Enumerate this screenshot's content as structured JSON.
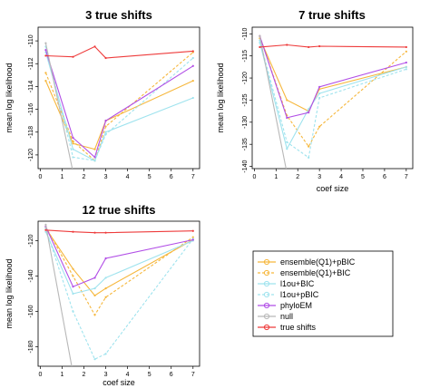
{
  "chart_data": [
    {
      "type": "line",
      "title": "3  true shifts",
      "xlabel": "",
      "ylabel": "mean log likelihood",
      "x": [
        0.25,
        1.5,
        2.5,
        3,
        7
      ],
      "xticks": [
        0,
        1,
        2,
        3,
        4,
        5,
        6,
        7
      ],
      "xlim": [
        -0.1,
        7.3
      ],
      "ylim": [
        -121.2,
        -108.8
      ],
      "yticks": [
        -110,
        -112,
        -114,
        -116,
        -118,
        -120
      ],
      "series": [
        {
          "key": "ens_pbic",
          "values": [
            -113.5,
            -119,
            -119.5,
            -117,
            -113.5
          ]
        },
        {
          "key": "ens_bic",
          "values": [
            -112.8,
            -118.8,
            -120.5,
            -117.5,
            -111.0
          ]
        },
        {
          "key": "l1ou_bic",
          "values": [
            -111.0,
            -119.5,
            -120.5,
            -118.0,
            -115.0
          ]
        },
        {
          "key": "l1ou_pbic",
          "values": [
            -110.5,
            -120.2,
            -120.5,
            -118.2,
            -111.5
          ]
        },
        {
          "key": "phyloem",
          "values": [
            -110.8,
            -118.5,
            -120.2,
            -117.0,
            -112.2
          ]
        },
        {
          "key": "null",
          "values": [
            -110.2,
            -121.5,
            null,
            null,
            null
          ]
        },
        {
          "key": "true",
          "values": [
            -111.3,
            -111.4,
            -110.5,
            -111.5,
            -110.9
          ]
        }
      ]
    },
    {
      "type": "line",
      "title": "7  true shifts",
      "xlabel": "coef size",
      "ylabel": "mean log likelihood",
      "x": [
        0.25,
        1.5,
        2.5,
        3,
        7
      ],
      "xticks": [
        0,
        1,
        2,
        3,
        4,
        5,
        6,
        7
      ],
      "xlim": [
        -0.1,
        7.3
      ],
      "ylim": [
        -140.5,
        -108.5
      ],
      "yticks": [
        -110,
        -115,
        -120,
        -125,
        -130,
        -135,
        -140
      ],
      "series": [
        {
          "key": "ens_pbic",
          "values": [
            -111.0,
            -125.0,
            -127.5,
            -122.5,
            -117.5
          ]
        },
        {
          "key": "ens_bic",
          "values": [
            -110.5,
            -128.5,
            -135.5,
            -131.0,
            -114.0
          ]
        },
        {
          "key": "l1ou_bic",
          "values": [
            -112.0,
            -136.0,
            -127.0,
            -123.5,
            -117.5
          ]
        },
        {
          "key": "l1ou_pbic",
          "values": [
            -111.5,
            -134.5,
            -138.0,
            -124.5,
            -118.0
          ]
        },
        {
          "key": "phyloem",
          "values": [
            -110.5,
            -129.0,
            -127.8,
            -122.0,
            -116.5
          ]
        },
        {
          "key": "null",
          "values": [
            -110.5,
            -141.5,
            null,
            null,
            null
          ]
        },
        {
          "key": "true",
          "values": [
            -113.0,
            -112.5,
            -113.0,
            -112.8,
            -113.0
          ]
        }
      ]
    },
    {
      "type": "line",
      "title": "12  true shifts",
      "xlabel": "coef size",
      "ylabel": "mean log likelihood",
      "x": [
        0.25,
        1.5,
        2.5,
        3,
        7
      ],
      "xticks": [
        0,
        1,
        2,
        3,
        4,
        5,
        6,
        7
      ],
      "xlim": [
        -0.1,
        7.3
      ],
      "ylim": [
        -191,
        -109
      ],
      "yticks": [
        -120,
        -140,
        -160,
        -180
      ],
      "series": [
        {
          "key": "ens_pbic",
          "values": [
            -113.0,
            -136.0,
            -151.0,
            -147.0,
            -119.5
          ]
        },
        {
          "key": "ens_bic",
          "values": [
            -112.0,
            -140.0,
            -162.0,
            -152.0,
            -118.0
          ]
        },
        {
          "key": "l1ou_bic",
          "values": [
            -115.0,
            -150.0,
            -147.0,
            -141.0,
            -120.0
          ]
        },
        {
          "key": "l1ou_pbic",
          "values": [
            -113.0,
            -160.0,
            -187.0,
            -184.0,
            -119.0
          ]
        },
        {
          "key": "phyloem",
          "values": [
            -112.0,
            -146.0,
            -141.0,
            -130.0,
            -119.5
          ]
        },
        {
          "key": "null",
          "values": [
            -111.0,
            -195.0,
            null,
            null,
            null
          ]
        },
        {
          "key": "true",
          "values": [
            -114.0,
            -115.0,
            -115.5,
            -115.5,
            -114.5
          ]
        }
      ]
    }
  ],
  "legend": {
    "placement": "bottom-right",
    "items": [
      {
        "key": "ens_pbic",
        "label": "ensemble(Q1)+pBIC",
        "color": "#f6b73c",
        "dashed": false
      },
      {
        "key": "ens_bic",
        "label": "ensemble(Q1)+BIC",
        "color": "#f6b73c",
        "dashed": true
      },
      {
        "key": "l1ou_bic",
        "label": "l1ou+BIC",
        "color": "#9fe3ee",
        "dashed": false
      },
      {
        "key": "l1ou_pbic",
        "label": "l1ou+pBIC",
        "color": "#9fe3ee",
        "dashed": true
      },
      {
        "key": "phyloem",
        "label": "phyloEM",
        "color": "#b14ee6",
        "dashed": false
      },
      {
        "key": "null",
        "label": "null",
        "color": "#b8b8b8",
        "dashed": false
      },
      {
        "key": "true",
        "label": "true shifts",
        "color": "#ee3b3b",
        "dashed": false
      }
    ]
  }
}
